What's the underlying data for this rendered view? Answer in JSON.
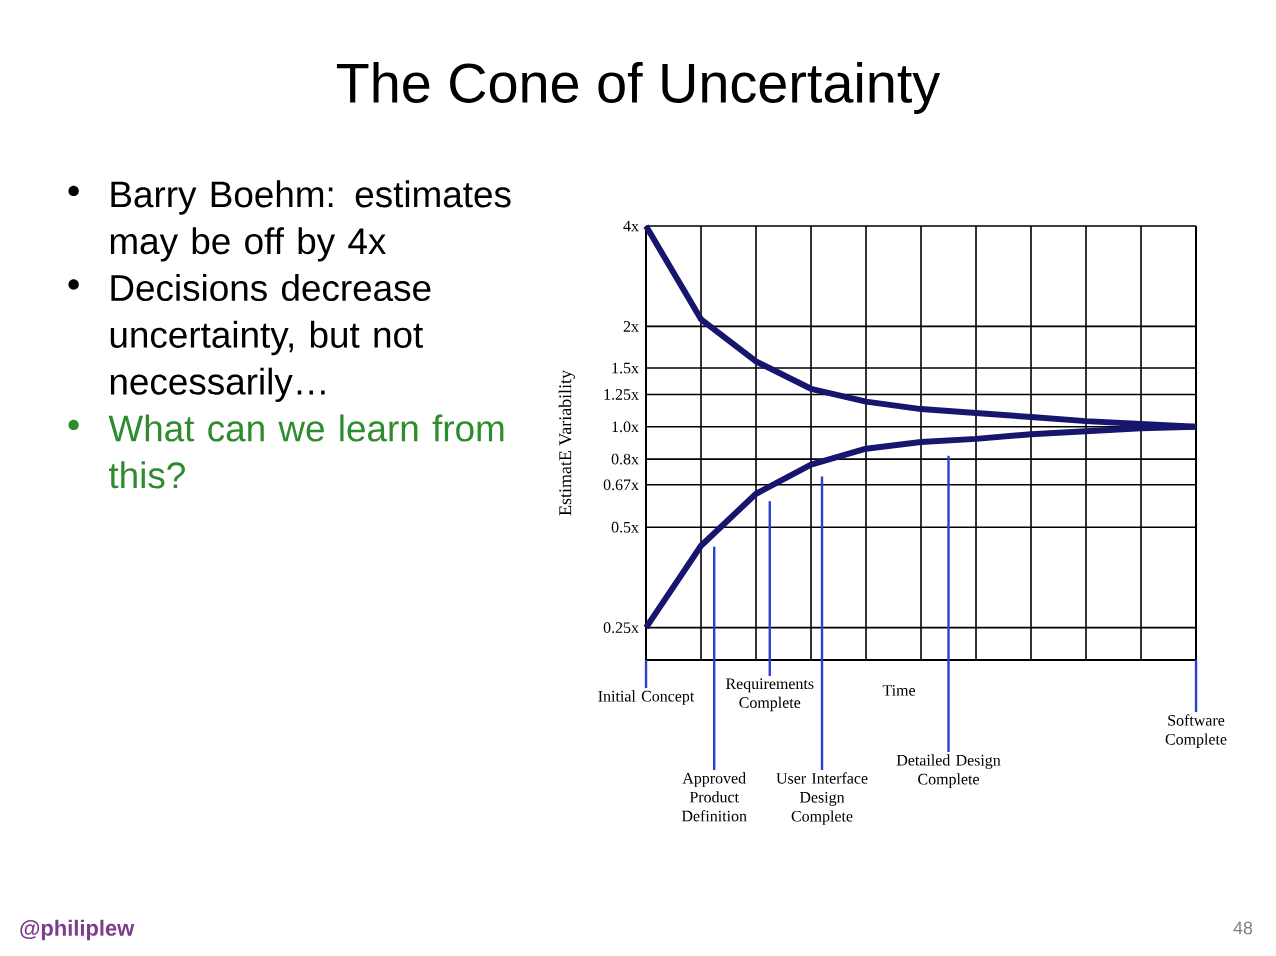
{
  "chart_data": {
    "type": "line",
    "title": "The Cone of Uncertainty",
    "xlabel": "Time",
    "ylabel": "EstimatE Variability",
    "categories": [
      null,
      null,
      null,
      null,
      null,
      null,
      null,
      null,
      null,
      null,
      null
    ],
    "series": [
      {
        "color": "#16166e",
        "values": [
          4,
          2.1,
          1.57,
          1.3,
          1.19,
          1.13,
          1.1,
          1.07,
          1.04,
          1.02,
          1.0
        ]
      },
      {
        "color": "#16166e",
        "values": [
          0.25,
          0.44,
          0.63,
          0.77,
          0.86,
          0.9,
          0.92,
          0.95,
          0.97,
          0.99,
          1.0
        ]
      }
    ],
    "log": "y",
    "ylim": [
      0.2,
      4
    ],
    "yticks": [
      {
        "value": 0.25,
        "label": "0.25x"
      },
      {
        "value": 0.5,
        "label": "0.5x"
      },
      {
        "value": 0.67,
        "label": "0.67x"
      },
      {
        "value": 0.8,
        "label": "0.8x"
      },
      {
        "value": 1.0,
        "label": "1.0x"
      },
      {
        "value": 1.25,
        "label": "1.25x"
      },
      {
        "value": 1.5,
        "label": "1.5x"
      },
      {
        "value": 2,
        "label": "2x"
      },
      {
        "value": 4,
        "label": "4x"
      }
    ],
    "grid": true,
    "tick_labels": "y",
    "line_style": "solid",
    "marker": "none",
    "annotations": [
      "Barry Boehm: estimates may be off by 4x",
      "Decisions decrease uncertainty, but not necessarily…",
      "What can we learn from this?",
      "Initial Concept",
      "Approved Product Definition",
      "Requirements Complete",
      "User Interface Design Complete",
      "Detailed Design Complete",
      "Software Complete",
      "@philiplew",
      "48"
    ]
  }
}
